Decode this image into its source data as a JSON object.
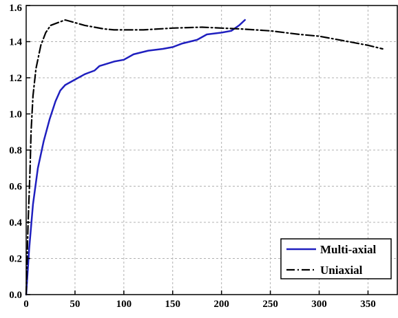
{
  "chart_data": {
    "type": "line",
    "title": "",
    "xlabel": "",
    "ylabel": "",
    "xlim": [
      0,
      380
    ],
    "ylim": [
      0,
      1.6
    ],
    "x_ticks": [
      0,
      50,
      100,
      150,
      200,
      250,
      300,
      350
    ],
    "y_ticks": [
      0.0,
      0.2,
      0.4,
      0.6,
      0.8,
      1.0,
      1.2,
      1.4,
      1.6
    ],
    "x_tick_labels": [
      "0",
      "50",
      "100",
      "150",
      "200",
      "250",
      "300",
      "350"
    ],
    "y_tick_labels": [
      "0.0",
      "0.2",
      "0.4",
      "0.6",
      "0.8",
      "1.0",
      "1.2",
      "1.4",
      "1.6"
    ],
    "grid": true,
    "legend": "bottom-right",
    "series": [
      {
        "name": "Multi-axial",
        "color": "#1f1fbf",
        "style": "solid",
        "x": [
          0,
          3,
          7,
          12,
          18,
          24,
          30,
          35,
          40,
          50,
          60,
          70,
          75,
          90,
          100,
          110,
          125,
          140,
          150,
          160,
          175,
          185,
          200,
          210,
          218,
          224
        ],
        "y": [
          0.0,
          0.25,
          0.5,
          0.7,
          0.85,
          0.97,
          1.07,
          1.13,
          1.16,
          1.19,
          1.22,
          1.24,
          1.265,
          1.29,
          1.3,
          1.33,
          1.35,
          1.36,
          1.37,
          1.39,
          1.41,
          1.44,
          1.45,
          1.46,
          1.49,
          1.52
        ]
      },
      {
        "name": "Uniaxial",
        "color": "#000000",
        "style": "dash-dot",
        "x": [
          0,
          1,
          2,
          3,
          4,
          5,
          7,
          10,
          15,
          20,
          25,
          35,
          40,
          50,
          60,
          70,
          80,
          90,
          100,
          120,
          150,
          180,
          200,
          220,
          250,
          280,
          300,
          330,
          350,
          365
        ],
        "y": [
          0.0,
          0.2,
          0.4,
          0.55,
          0.7,
          0.9,
          1.1,
          1.25,
          1.38,
          1.45,
          1.49,
          1.51,
          1.52,
          1.505,
          1.49,
          1.48,
          1.47,
          1.465,
          1.465,
          1.465,
          1.475,
          1.48,
          1.475,
          1.47,
          1.46,
          1.44,
          1.43,
          1.4,
          1.38,
          1.36
        ]
      }
    ]
  }
}
